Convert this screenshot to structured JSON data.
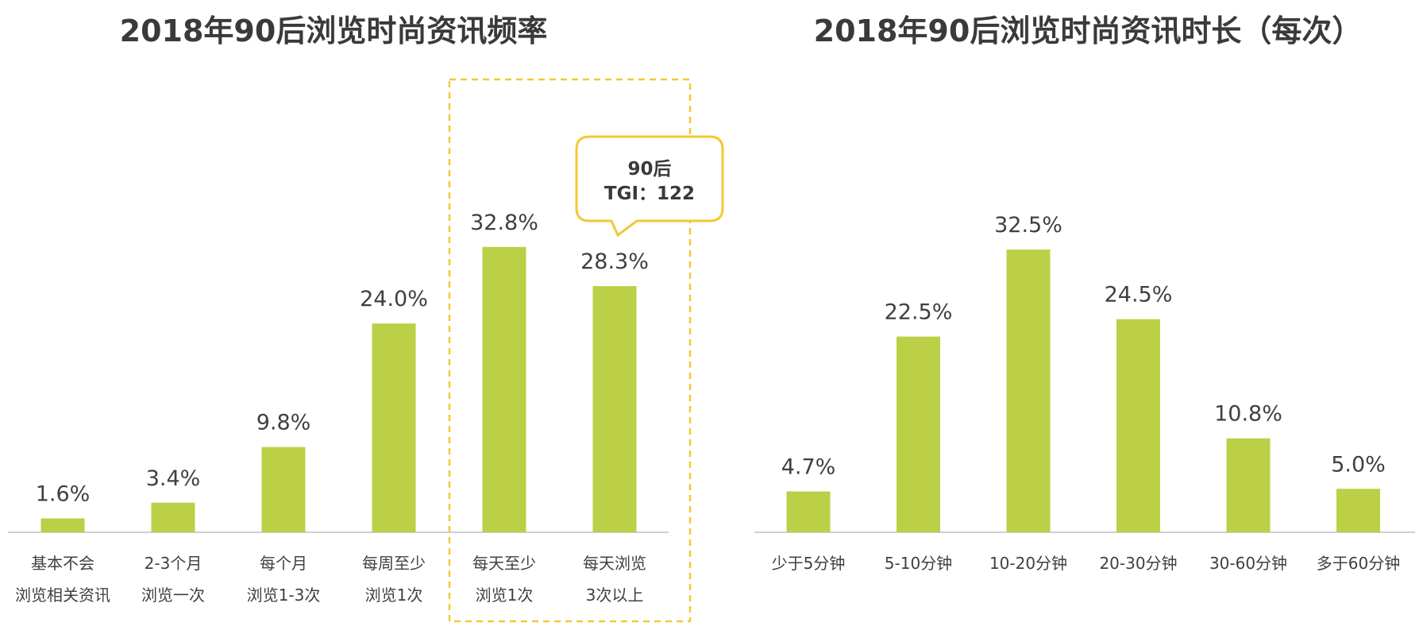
{
  "colors": {
    "bar": "#bbd046",
    "axis": "#bfbfbf",
    "highlight": "#f2c935",
    "text": "#404040",
    "title": "#3a3a3a"
  },
  "chart_data": [
    {
      "type": "bar",
      "title": "2018年90后浏览时尚资讯频率",
      "xlabel": "",
      "ylabel": "",
      "ylim": [
        0,
        40
      ],
      "grid": false,
      "categories": [
        [
          "基本不会",
          "浏览相关资讯"
        ],
        [
          "2-3个月",
          "浏览一次"
        ],
        [
          "每个月",
          "浏览1-3次"
        ],
        [
          "每周至少",
          "浏览1次"
        ],
        [
          "每天至少",
          "浏览1次"
        ],
        [
          "每天浏览",
          "3次以上"
        ]
      ],
      "values": [
        1.6,
        3.4,
        9.8,
        24.0,
        32.8,
        28.3
      ],
      "value_labels": [
        "1.6%",
        "3.4%",
        "9.8%",
        "24.0%",
        "32.8%",
        "28.3%"
      ],
      "highlight_categories": [
        4,
        5
      ],
      "callout": {
        "category_index": 5,
        "lines": [
          "90后",
          "TGI：122"
        ]
      }
    },
    {
      "type": "bar",
      "title": "2018年90后浏览时尚资讯时长（每次）",
      "xlabel": "",
      "ylabel": "",
      "ylim": [
        0,
        40
      ],
      "grid": false,
      "categories": [
        [
          "少于5分钟"
        ],
        [
          "5-10分钟"
        ],
        [
          "10-20分钟"
        ],
        [
          "20-30分钟"
        ],
        [
          "30-60分钟"
        ],
        [
          "多于60分钟"
        ]
      ],
      "values": [
        4.7,
        22.5,
        32.5,
        24.5,
        10.8,
        5.0
      ],
      "value_labels": [
        "4.7%",
        "22.5%",
        "32.5%",
        "24.5%",
        "10.8%",
        "5.0%"
      ]
    }
  ]
}
